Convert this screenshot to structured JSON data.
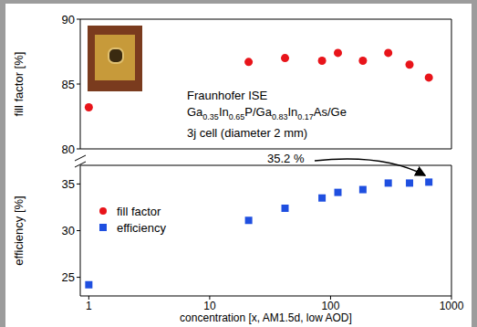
{
  "chart_data": [
    {
      "type": "scatter",
      "y_label": "fill factor [%]",
      "log": "x",
      "x": [
        1,
        21,
        42,
        85,
        115,
        185,
        300,
        450,
        650
      ],
      "xlim": [
        0.85,
        1000
      ],
      "xticks": [
        1,
        10,
        100,
        1000
      ],
      "ylim": [
        80,
        90
      ],
      "yticks": [
        80,
        85,
        90
      ],
      "tick_labels": "y",
      "annotations": [
        "Fraunhofer ISE",
        "Ga0.35In0.65P/Ga0.83In0.17As/Ge",
        "3j cell (diameter 2 mm)"
      ],
      "series": [
        {
          "name": "fill factor",
          "color": "#e8141a",
          "marker": "circle",
          "values": [
            83.2,
            86.7,
            87.0,
            86.8,
            87.4,
            86.8,
            87.4,
            86.5,
            85.5
          ]
        }
      ]
    },
    {
      "type": "scatter",
      "x_label": "concentration [x, AM1.5d, low AOD]",
      "y_label": "efficiency [%]",
      "log": "x",
      "x": [
        1,
        21,
        42,
        85,
        115,
        185,
        300,
        450,
        650
      ],
      "xlim": [
        0.85,
        1000
      ],
      "xticks": [
        1,
        10,
        100,
        1000
      ],
      "ylim": [
        23,
        37
      ],
      "yticks": [
        25,
        30,
        35
      ],
      "legend": "left",
      "annotations": [
        "35.2 %"
      ],
      "series": [
        {
          "name": "efficiency",
          "color": "#1f4fe0",
          "marker": "square",
          "values": [
            24.2,
            31.1,
            32.4,
            33.5,
            34.1,
            34.4,
            35.1,
            35.1,
            35.2
          ]
        }
      ]
    }
  ]
}
